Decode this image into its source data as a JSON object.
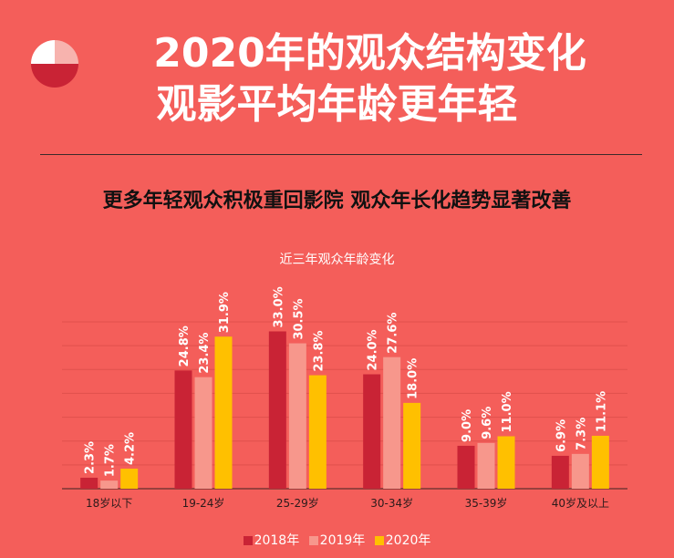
{
  "header": {
    "title_line1": "2020年的观众结构变化",
    "title_line2": "观影平均年龄更年轻",
    "subtitle": "更多年轻观众积极重回影院 观众年长化趋势显著改善"
  },
  "colors": {
    "background": "#f45e5a",
    "series_2018": "#c92335",
    "series_2019": "#f7978c",
    "series_2020": "#ffc000"
  },
  "chart_data": {
    "type": "bar",
    "title": "近三年观众年龄变化",
    "categories": [
      "18岁以下",
      "19-24岁",
      "25-29岁",
      "30-34岁",
      "35-39岁",
      "40岁及以上"
    ],
    "series": [
      {
        "name": "2018年",
        "values": [
          2.3,
          24.8,
          33.0,
          24.0,
          9.0,
          6.9
        ]
      },
      {
        "name": "2019年",
        "values": [
          1.7,
          23.4,
          30.5,
          27.6,
          9.6,
          7.3
        ]
      },
      {
        "name": "2020年",
        "values": [
          4.2,
          31.9,
          23.8,
          18.0,
          11.0,
          11.1
        ]
      }
    ],
    "value_labels": [
      [
        "2.3",
        "24.8",
        "33.0",
        "24.0",
        "9.0",
        "6.9"
      ],
      [
        "1.7",
        "23.4",
        "30.5",
        "27.6",
        "9.6",
        "7.3"
      ],
      [
        "4.2",
        "31.9",
        "23.8",
        "18.0",
        "11.0",
        "11.1"
      ]
    ],
    "value_suffix": "%",
    "ylim": [
      0,
      35
    ],
    "grid": true,
    "legend_position": "bottom"
  }
}
